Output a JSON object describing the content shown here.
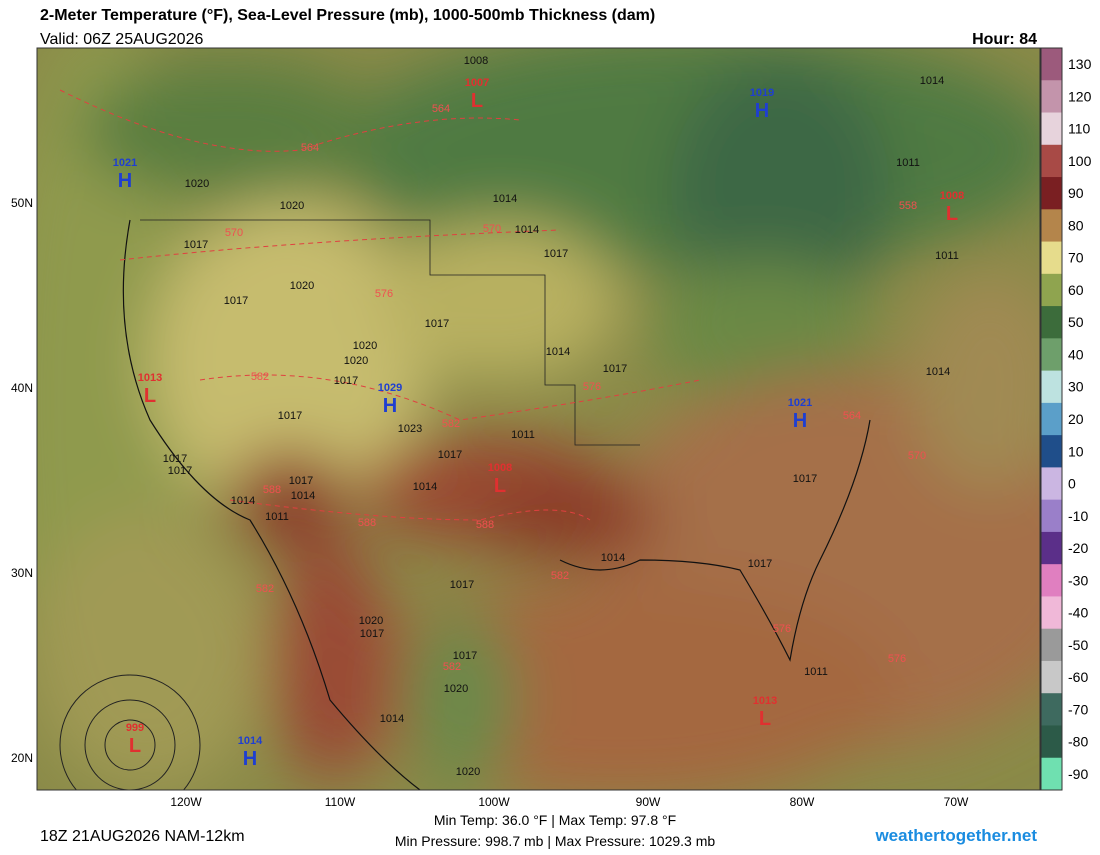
{
  "header": {
    "title": "2-Meter Temperature (°F), Sea-Level Pressure (mb), 1000-500mb Thickness (dam)",
    "valid": "Valid: 06Z 25AUG2026",
    "hour": "Hour: 84"
  },
  "colorbar": {
    "ticks": [
      130,
      120,
      110,
      100,
      90,
      80,
      70,
      60,
      50,
      40,
      30,
      20,
      10,
      0,
      -10,
      -20,
      -30,
      -40,
      -50,
      -60,
      -70,
      -80,
      -90
    ],
    "colors": [
      "#9c5a7c",
      "#c394ab",
      "#e7d3dc",
      "#a84a46",
      "#7a1f22",
      "#b4854b",
      "#e6dc8c",
      "#8fa44f",
      "#3c6c3b",
      "#6e9f6b",
      "#bde2e0",
      "#5b9fc9",
      "#1f4e8a",
      "#cbb6e2",
      "#9a7fc9",
      "#5b2f89",
      "#e07fc0",
      "#f0b8d8",
      "#9a9a9a",
      "#c8c8c8",
      "#3e6a5f",
      "#2c5a48",
      "#6fe0b0"
    ]
  },
  "axes": {
    "lon_labels": [
      "120W",
      "110W",
      "100W",
      "90W",
      "80W",
      "70W"
    ],
    "lat_labels": [
      "50N",
      "40N",
      "30N",
      "20N"
    ]
  },
  "map": {
    "pressure_centers": [
      {
        "letter": "H",
        "value": 1021
      },
      {
        "letter": "L",
        "value": 1007
      },
      {
        "letter": "H",
        "value": 1019
      },
      {
        "letter": "L",
        "value": 1008
      },
      {
        "letter": "L",
        "value": 1013
      },
      {
        "letter": "H",
        "value": 1029
      },
      {
        "letter": "H",
        "value": 1021
      },
      {
        "letter": "L",
        "value": 1008
      },
      {
        "letter": "L",
        "value": 999
      },
      {
        "letter": "H",
        "value": 1014
      },
      {
        "letter": "L",
        "value": 1013
      }
    ],
    "isobar_labels": [
      1020,
      1020,
      1017,
      1017,
      1020,
      1017,
      1020,
      1020,
      1017,
      1017,
      1023,
      1017,
      1017,
      1014,
      1017,
      1014,
      1011,
      1014,
      1017,
      1011,
      1014,
      1017,
      1014,
      1017,
      1014,
      1011,
      1014,
      1011,
      1014,
      1017,
      1014,
      1017,
      1017,
      1020,
      1017,
      1017,
      1020,
      1014,
      1020,
      1008,
      1011
    ],
    "thickness_labels": [
      564,
      564,
      570,
      570,
      576,
      582,
      582,
      576,
      588,
      588,
      588,
      582,
      582,
      582,
      576,
      576,
      570,
      564,
      558
    ]
  },
  "footer": {
    "model": "18Z 21AUG2026 NAM-12km",
    "temps": "Min Temp: 36.0 °F | Max Temp: 97.8 °F",
    "pressures": "Min Pressure: 998.7 mb | Max Pressure: 1029.3 mb",
    "site": "weathertogether.net"
  }
}
